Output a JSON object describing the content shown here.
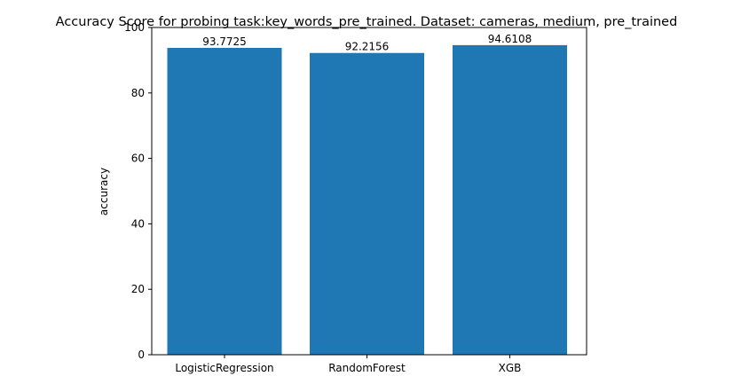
{
  "chart_data": {
    "type": "bar",
    "title": "Accuracy Score for probing task:key_words_pre_trained. Dataset: cameras, medium, pre_trained",
    "xlabel": "",
    "ylabel": "accuracy",
    "categories": [
      "LogisticRegression",
      "RandomForest",
      "XGB"
    ],
    "values": [
      93.7725,
      92.2156,
      94.6108
    ],
    "data_labels": [
      "93.7725",
      "92.2156",
      "94.6108"
    ],
    "ylim": [
      0,
      100
    ],
    "yticks": [
      0,
      20,
      40,
      60,
      80,
      100
    ],
    "grid": false,
    "bar_color": "#1f77b4"
  }
}
